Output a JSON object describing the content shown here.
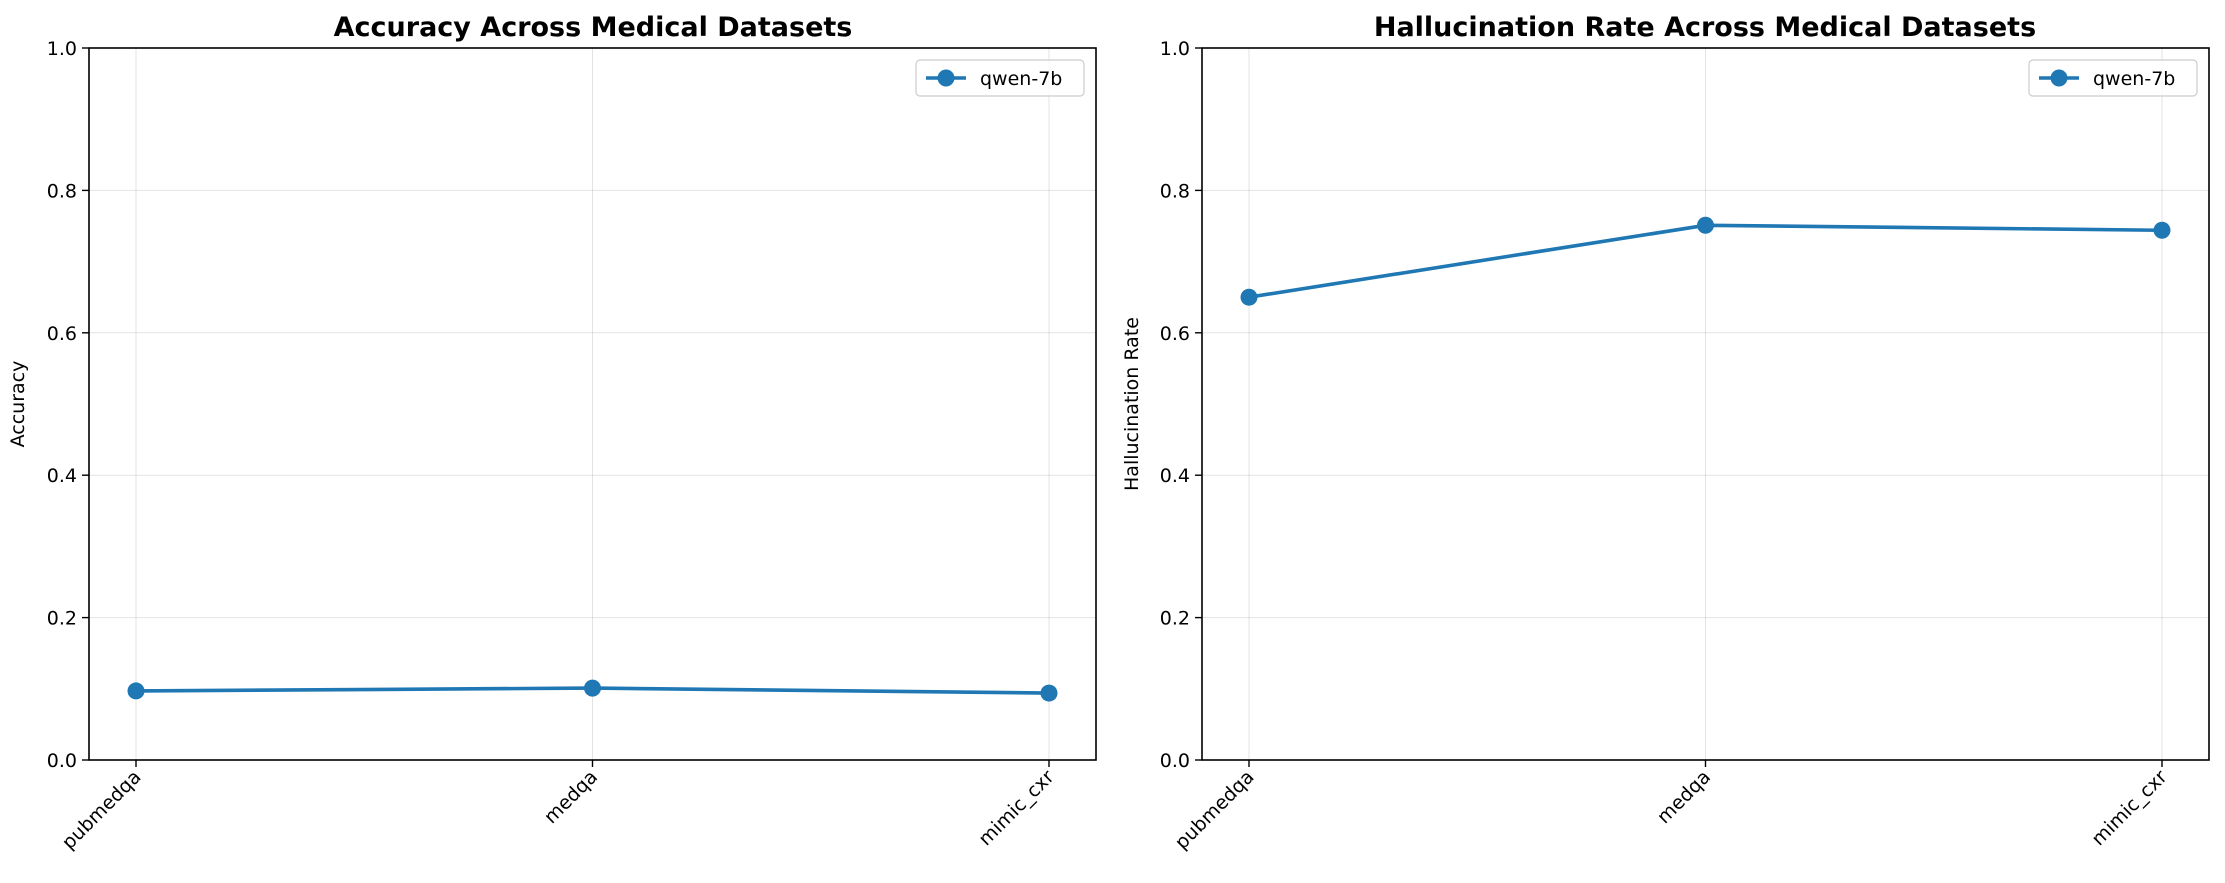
{
  "chart_data": [
    {
      "type": "line",
      "title": "Accuracy Across Medical Datasets",
      "xlabel": "",
      "ylabel": "Accuracy",
      "categories": [
        "pubmedqa",
        "medqa",
        "mimic_cxr"
      ],
      "series": [
        {
          "name": "qwen-7b",
          "values": [
            0.097,
            0.101,
            0.094
          ],
          "color": "#1f77b4"
        }
      ],
      "ylim": [
        0,
        1.0
      ],
      "yticks": [
        "0.0",
        "0.2",
        "0.4",
        "0.6",
        "0.8",
        "1.0"
      ],
      "grid": true,
      "legend": "top-right"
    },
    {
      "type": "line",
      "title": "Hallucination Rate Across Medical Datasets",
      "xlabel": "",
      "ylabel": "Hallucination Rate",
      "categories": [
        "pubmedqa",
        "medqa",
        "mimic_cxr"
      ],
      "series": [
        {
          "name": "qwen-7b",
          "values": [
            0.65,
            0.751,
            0.744
          ],
          "color": "#1f77b4"
        }
      ],
      "ylim": [
        0,
        1.0
      ],
      "yticks": [
        "0.0",
        "0.2",
        "0.4",
        "0.6",
        "0.8",
        "1.0"
      ],
      "grid": true,
      "legend": "top-right"
    }
  ]
}
